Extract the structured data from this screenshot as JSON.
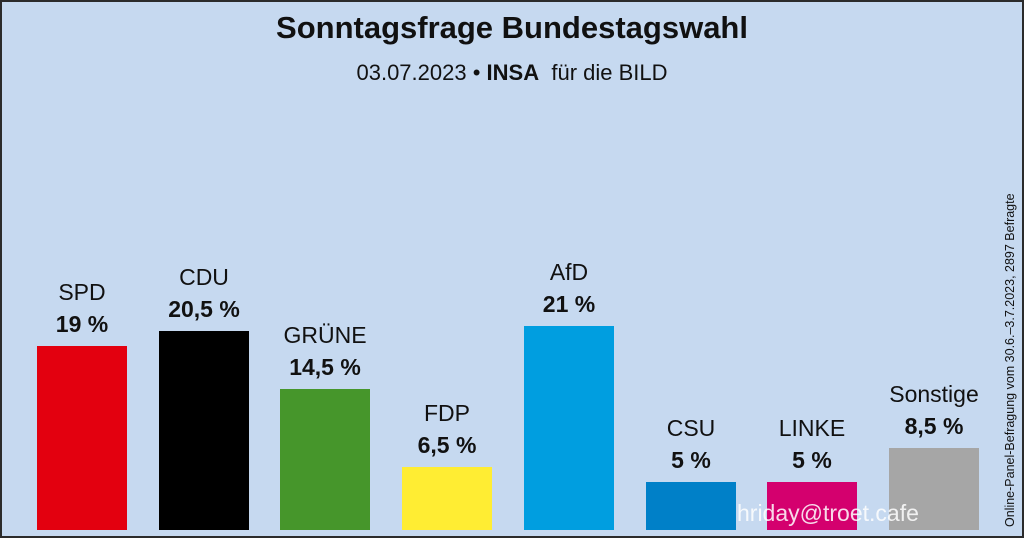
{
  "chart_data": {
    "type": "bar",
    "title": "Sonntagsfrage Bundestagswahl",
    "subtitle": {
      "date": "03.07.2023",
      "separator": "•",
      "institute": "INSA",
      "client": "für die BILD"
    },
    "categories": [
      "SPD",
      "CDU",
      "GRÜNE",
      "FDP",
      "AfD",
      "CSU",
      "LINKE",
      "Sonstige"
    ],
    "values": [
      19,
      20.5,
      14.5,
      6.5,
      21,
      5,
      5,
      8.5
    ],
    "value_labels": [
      "19 %",
      "20,5 %",
      "14,5 %",
      "6,5 %",
      "21 %",
      "5 %",
      "5 %",
      "8,5 %"
    ],
    "colors": [
      "#e3000f",
      "#000000",
      "#46962b",
      "#ffed33",
      "#009ee0",
      "#0080c8",
      "#d4006e",
      "#a6a6a6"
    ],
    "xlabel": "",
    "ylabel": "",
    "ylim": [
      0,
      21
    ],
    "grid": false,
    "side_note": "Online-Panel-Befragung vom 30.6.–3.7.2023, 2897 Befragte"
  },
  "watermark": "hriday@troet.cafe"
}
